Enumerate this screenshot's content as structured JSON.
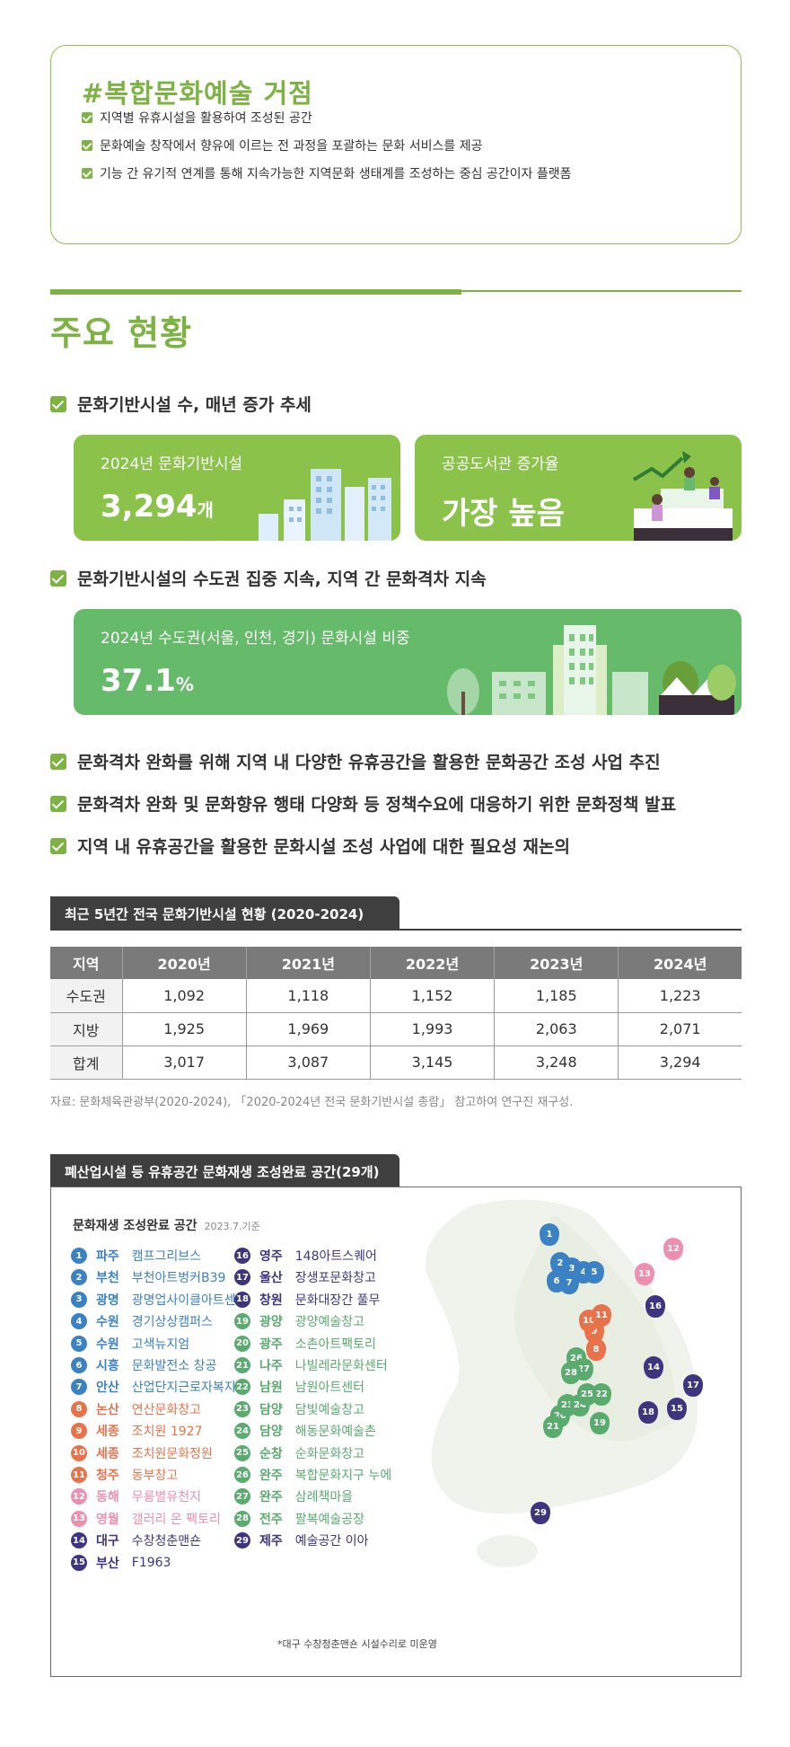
{
  "hub": {
    "title": "#복합문화예술 거점",
    "items": [
      "지역별 유휴시설을 활용하여 조성된 공간",
      "문화예술 창작에서 향유에 이르는 전 과정을 포괄하는 문화 서비스를 제공",
      "기능 간 유기적 연계를 통해 지속가능한 지역문화 생태계를 조성하는 중심 공간이자 플랫폼"
    ]
  },
  "status": {
    "title": "주요 현황",
    "bullet_1": "문화기반시설 수, 매년 증가 추세",
    "card_1": {
      "label": "2024년 문화기반시설",
      "value": "3,294",
      "unit": "개"
    },
    "card_2": {
      "label": "공공도서관 증가율",
      "value": "가장 높음"
    },
    "bullet_2": "문화기반시설의 수도권 집중 지속, 지역 간 문화격차 지속",
    "card_3": {
      "label": "2024년 수도권(서울, 인천, 경기) 문화시설 비중",
      "value": "37.1",
      "unit": "%"
    },
    "bullets": [
      "문화격차 완화를 위해 지역 내 다양한 유휴공간을 활용한 문화공간 조성 사업 추진",
      "문화격차 완화 및 문화향유 행태 다양화 등 정책수요에 대응하기 위한 문화정책 발표",
      "지역 내 유휴공간을 활용한 문화시설 조성 사업에 대한 필요성 재논의"
    ]
  },
  "table": {
    "title": "최근 5년간 전국 문화기반시설 현황 (2020-2024)",
    "headers": [
      "지역",
      "2020년",
      "2021년",
      "2022년",
      "2023년",
      "2024년"
    ],
    "rows": [
      [
        "수도권",
        "1,092",
        "1,118",
        "1,152",
        "1,185",
        "1,223"
      ],
      [
        "지방",
        "1,925",
        "1,969",
        "1,993",
        "2,063",
        "2,071"
      ],
      [
        "합계",
        "3,017",
        "3,087",
        "3,145",
        "3,248",
        "3,294"
      ]
    ],
    "source": "자료: 문화체육관광부(2020-2024), 「2020-2024년 전국 문화기반시설 총람」 참고하여 연구진 재구성."
  },
  "map": {
    "title": "폐산업시설 등 유휴공간 문화재생 조성완료 공간(29개)",
    "heading": "문화재생 조성완료 공간",
    "date": "2023.7.기준",
    "note": "*대구 수창청춘맨숀 시설수리로 미운영",
    "colors": {
      "blue": "#3b82c4",
      "orange": "#e8734a",
      "pink": "#ef8fb0",
      "navy": "#3d3580",
      "green": "#5aab6e"
    },
    "items": [
      {
        "n": "1",
        "city": "파주",
        "name": "캠프그리브스",
        "color": "blue"
      },
      {
        "n": "2",
        "city": "부천",
        "name": "부천아트벙커B39",
        "color": "blue"
      },
      {
        "n": "3",
        "city": "광명",
        "name": "광명업사이클아트센터",
        "color": "blue"
      },
      {
        "n": "4",
        "city": "수원",
        "name": "경기상상캠퍼스",
        "color": "blue"
      },
      {
        "n": "5",
        "city": "수원",
        "name": "고색뉴지엄",
        "color": "blue"
      },
      {
        "n": "6",
        "city": "시흥",
        "name": "문화발전소 창공",
        "color": "blue"
      },
      {
        "n": "7",
        "city": "안산",
        "name": "산업단지근로자복지관",
        "color": "blue"
      },
      {
        "n": "8",
        "city": "논산",
        "name": "연산문화창고",
        "color": "orange"
      },
      {
        "n": "9",
        "city": "세종",
        "name": "조치원 1927",
        "color": "orange"
      },
      {
        "n": "10",
        "city": "세종",
        "name": "조치원문화정원",
        "color": "orange"
      },
      {
        "n": "11",
        "city": "청주",
        "name": "동부창고",
        "color": "orange"
      },
      {
        "n": "12",
        "city": "동해",
        "name": "무릉별유천지",
        "color": "pink"
      },
      {
        "n": "13",
        "city": "영월",
        "name": "갤러리 온 팩토리",
        "color": "pink"
      },
      {
        "n": "14",
        "city": "대구",
        "name": "수창청춘맨숀",
        "color": "navy"
      },
      {
        "n": "15",
        "city": "부산",
        "name": "F1963",
        "color": "navy"
      },
      {
        "n": "16",
        "city": "영주",
        "name": "148아트스퀘어",
        "color": "navy"
      },
      {
        "n": "17",
        "city": "울산",
        "name": "장생포문화창고",
        "color": "navy"
      },
      {
        "n": "18",
        "city": "창원",
        "name": "문화대장간 풀무",
        "color": "navy"
      },
      {
        "n": "19",
        "city": "광양",
        "name": "광양예술창고",
        "color": "green"
      },
      {
        "n": "20",
        "city": "광주",
        "name": "소촌아트팩토리",
        "color": "green"
      },
      {
        "n": "21",
        "city": "나주",
        "name": "나빌레라문화센터",
        "color": "green"
      },
      {
        "n": "22",
        "city": "남원",
        "name": "남원아트센터",
        "color": "green"
      },
      {
        "n": "23",
        "city": "담양",
        "name": "담빛예술창고",
        "color": "green"
      },
      {
        "n": "24",
        "city": "담양",
        "name": "해동문화예술촌",
        "color": "green"
      },
      {
        "n": "25",
        "city": "순창",
        "name": "순화문화창고",
        "color": "green"
      },
      {
        "n": "26",
        "city": "완주",
        "name": "복합문화지구 누에",
        "color": "green"
      },
      {
        "n": "27",
        "city": "완주",
        "name": "삼례책마을",
        "color": "green"
      },
      {
        "n": "28",
        "city": "전주",
        "name": "팔복예술공장",
        "color": "green"
      },
      {
        "n": "29",
        "city": "제주",
        "name": "예술공간 이아",
        "color": "navy"
      }
    ]
  }
}
